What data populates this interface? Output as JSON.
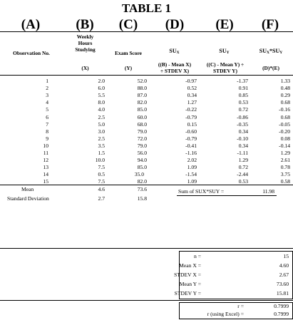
{
  "title": "TABLE 1",
  "column_letters": [
    "(A)",
    "(B)",
    "(C)",
    "(D)",
    "(E)",
    "(F)"
  ],
  "headers": {
    "A": "Observation No.",
    "B_line1": "Weekly",
    "B_line2": "Hours",
    "B_line3": "Studying",
    "B_unit": "(X)",
    "C": "Exam Score",
    "C_unit": "(Y)",
    "D_main": "SU",
    "D_sub": "X",
    "D_formula1": "((B) -   Mean X)",
    "D_formula2": "÷ STDEV X)",
    "E_main": "SU",
    "E_sub": "Y",
    "E_formula1": "((C) -  Mean Y) ÷",
    "E_formula2": "STDEV Y)",
    "F_main1": "SU",
    "F_sub1": "X",
    "F_star": "*SU",
    "F_sub2": "Y",
    "F_formula": "(D)*(E)"
  },
  "rows": [
    {
      "obs": "1",
      "x": "2.0",
      "y": "52.0",
      "sux": "-0.97",
      "suy": "-1.37",
      "prod": "1.33"
    },
    {
      "obs": "2",
      "x": "6.0",
      "y": "88.0",
      "sux": "0.52",
      "suy": "0.91",
      "prod": "0.48"
    },
    {
      "obs": "3",
      "x": "5.5",
      "y": "87.0",
      "sux": "0.34",
      "suy": "0.85",
      "prod": "0.29"
    },
    {
      "obs": "4",
      "x": "8.0",
      "y": "82.0",
      "sux": "1.27",
      "suy": "0.53",
      "prod": "0.68"
    },
    {
      "obs": "5",
      "x": "4.0",
      "y": "85.0",
      "sux": "-0.22",
      "suy": "0.72",
      "prod": "-0.16"
    },
    {
      "obs": "6",
      "x": "2.5",
      "y": "60.0",
      "sux": "-0.79",
      "suy": "-0.86",
      "prod": "0.68"
    },
    {
      "obs": "7",
      "x": "5.0",
      "y": "68.0",
      "sux": "0.15",
      "suy": "-0.35",
      "prod": "-0.05"
    },
    {
      "obs": "8",
      "x": "3.0",
      "y": "79.0",
      "sux": "-0.60",
      "suy": "0.34",
      "prod": "-0.20"
    },
    {
      "obs": "9",
      "x": "2.5",
      "y": "72.0",
      "sux": "-0.79",
      "suy": "-0.10",
      "prod": "0.08"
    },
    {
      "obs": "10",
      "x": "3.5",
      "y": "79.0",
      "sux": "-0.41",
      "suy": "0.34",
      "prod": "-0.14"
    },
    {
      "obs": "11",
      "x": "1.5",
      "y": "56.0",
      "sux": "-1.16",
      "suy": "-1.11",
      "prod": "1.29"
    },
    {
      "obs": "12",
      "x": "10.0",
      "y": "94.0",
      "sux": "2.02",
      "suy": "1.29",
      "prod": "2.61"
    },
    {
      "obs": "13",
      "x": "7.5",
      "y": "85.0",
      "sux": "1.09",
      "suy": "0.72",
      "prod": "0.78"
    },
    {
      "obs": "14",
      "x": "0.5",
      "y": "35.0",
      "sux": "-1.54",
      "suy": "-2.44",
      "prod": "3.75"
    },
    {
      "obs": "15",
      "x": "7.5",
      "y": "82.0",
      "sux": "1.09",
      "suy": "0.53",
      "prod": "0.58"
    }
  ],
  "summary": {
    "mean_label": "Mean",
    "mean_x": "4.6",
    "mean_y": "73.6",
    "sd_label": "Standard Deviation",
    "sd_x": "2.7",
    "sd_y": "15.8",
    "sum_label": "Sum of SUX*SUY =",
    "sum_value": "11.98"
  },
  "stats": [
    {
      "label": "n =",
      "value": "15"
    },
    {
      "label": "Mean X =",
      "value": "4.60"
    },
    {
      "label": "STDEV X =",
      "value": "2.67"
    },
    {
      "label": "Mean Y =",
      "value": "73.60"
    },
    {
      "label": "STDEV Y =",
      "value": "15.81"
    }
  ],
  "results": [
    {
      "label": "r =",
      "value": "0.7999"
    },
    {
      "label": "r (using Excel) =",
      "value": "0.7999"
    }
  ]
}
